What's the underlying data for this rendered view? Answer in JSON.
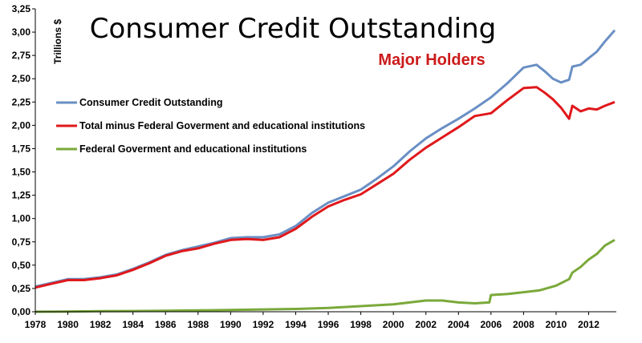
{
  "chart_data": {
    "type": "line",
    "title": "Consumer Credit Outstanding",
    "subtitle": "Major Holders",
    "ylabel": "Trillions $",
    "xlabel": "",
    "xlim": [
      1978,
      2013.7
    ],
    "ylim": [
      0,
      3.25
    ],
    "y_ticks": [
      "0,00",
      "0,25",
      "0,50",
      "0,75",
      "1,00",
      "1,25",
      "1,50",
      "1,75",
      "2,00",
      "2,25",
      "2,50",
      "2,75",
      "3,00",
      "3,25"
    ],
    "x_ticks": [
      "1978",
      "1980",
      "1982",
      "1984",
      "1986",
      "1988",
      "1990",
      "1992",
      "1994",
      "1996",
      "1998",
      "2000",
      "2002",
      "2004",
      "2006",
      "2008",
      "2010",
      "2012"
    ],
    "grid": false,
    "legend_position": "upper-left",
    "series": [
      {
        "name": "Consumer Credit Outstanding",
        "color": "#6a8fc4",
        "points": [
          [
            1978,
            0.27
          ],
          [
            1979,
            0.31
          ],
          [
            1980,
            0.35
          ],
          [
            1981,
            0.35
          ],
          [
            1982,
            0.37
          ],
          [
            1983,
            0.4
          ],
          [
            1984,
            0.46
          ],
          [
            1985,
            0.53
          ],
          [
            1986,
            0.61
          ],
          [
            1987,
            0.66
          ],
          [
            1988,
            0.7
          ],
          [
            1989,
            0.74
          ],
          [
            1990,
            0.79
          ],
          [
            1991,
            0.8
          ],
          [
            1992,
            0.8
          ],
          [
            1993,
            0.83
          ],
          [
            1994,
            0.92
          ],
          [
            1995,
            1.06
          ],
          [
            1996,
            1.17
          ],
          [
            1997,
            1.24
          ],
          [
            1998,
            1.31
          ],
          [
            1999,
            1.43
          ],
          [
            2000,
            1.56
          ],
          [
            2001,
            1.72
          ],
          [
            2002,
            1.86
          ],
          [
            2003,
            1.97
          ],
          [
            2004,
            2.07
          ],
          [
            2005,
            2.18
          ],
          [
            2006,
            2.3
          ],
          [
            2007,
            2.45
          ],
          [
            2008,
            2.62
          ],
          [
            2008.8,
            2.65
          ],
          [
            2009.3,
            2.58
          ],
          [
            2009.8,
            2.5
          ],
          [
            2010.3,
            2.46
          ],
          [
            2010.8,
            2.49
          ],
          [
            2011,
            2.63
          ],
          [
            2011.5,
            2.65
          ],
          [
            2012,
            2.72
          ],
          [
            2012.5,
            2.79
          ],
          [
            2013,
            2.9
          ],
          [
            2013.6,
            3.02
          ]
        ]
      },
      {
        "name": "Total  minus Federal Goverment and educational institutions",
        "color": "#e0181b",
        "points": [
          [
            1978,
            0.26
          ],
          [
            1979,
            0.3
          ],
          [
            1980,
            0.34
          ],
          [
            1981,
            0.34
          ],
          [
            1982,
            0.36
          ],
          [
            1983,
            0.39
          ],
          [
            1984,
            0.45
          ],
          [
            1985,
            0.52
          ],
          [
            1986,
            0.6
          ],
          [
            1987,
            0.65
          ],
          [
            1988,
            0.68
          ],
          [
            1989,
            0.73
          ],
          [
            1990,
            0.77
          ],
          [
            1991,
            0.78
          ],
          [
            1992,
            0.77
          ],
          [
            1993,
            0.8
          ],
          [
            1994,
            0.89
          ],
          [
            1995,
            1.02
          ],
          [
            1996,
            1.13
          ],
          [
            1997,
            1.2
          ],
          [
            1998,
            1.26
          ],
          [
            1999,
            1.37
          ],
          [
            2000,
            1.48
          ],
          [
            2001,
            1.63
          ],
          [
            2002,
            1.76
          ],
          [
            2003,
            1.87
          ],
          [
            2004,
            1.98
          ],
          [
            2005,
            2.1
          ],
          [
            2006,
            2.13
          ],
          [
            2007,
            2.27
          ],
          [
            2008,
            2.4
          ],
          [
            2008.8,
            2.41
          ],
          [
            2009.3,
            2.35
          ],
          [
            2009.8,
            2.28
          ],
          [
            2010.3,
            2.19
          ],
          [
            2010.8,
            2.07
          ],
          [
            2011,
            2.21
          ],
          [
            2011.5,
            2.15
          ],
          [
            2012,
            2.18
          ],
          [
            2012.5,
            2.17
          ],
          [
            2013,
            2.21
          ],
          [
            2013.6,
            2.25
          ]
        ]
      },
      {
        "name": "Federal Goverment and educational institutions",
        "color": "#7aa93a",
        "points": [
          [
            1978,
            0.0
          ],
          [
            1980,
            0.003
          ],
          [
            1982,
            0.006
          ],
          [
            1984,
            0.008
          ],
          [
            1986,
            0.01
          ],
          [
            1988,
            0.015
          ],
          [
            1990,
            0.02
          ],
          [
            1992,
            0.025
          ],
          [
            1994,
            0.03
          ],
          [
            1996,
            0.04
          ],
          [
            1998,
            0.06
          ],
          [
            2000,
            0.08
          ],
          [
            2001,
            0.1
          ],
          [
            2002,
            0.12
          ],
          [
            2003,
            0.12
          ],
          [
            2004,
            0.1
          ],
          [
            2005,
            0.09
          ],
          [
            2005.9,
            0.1
          ],
          [
            2006,
            0.18
          ],
          [
            2007,
            0.19
          ],
          [
            2008,
            0.21
          ],
          [
            2009,
            0.23
          ],
          [
            2010,
            0.28
          ],
          [
            2010.8,
            0.35
          ],
          [
            2011,
            0.42
          ],
          [
            2011.5,
            0.48
          ],
          [
            2012,
            0.56
          ],
          [
            2012.5,
            0.62
          ],
          [
            2013,
            0.71
          ],
          [
            2013.6,
            0.77
          ]
        ]
      }
    ]
  }
}
